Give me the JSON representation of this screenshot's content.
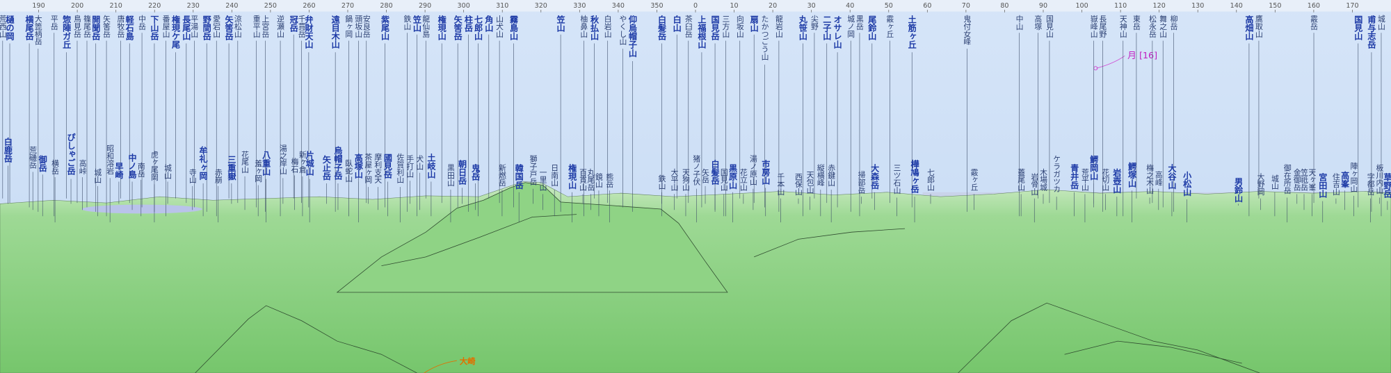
{
  "compass": {
    "ticks": [
      190,
      200,
      210,
      220,
      230,
      240,
      250,
      260,
      270,
      280,
      290,
      300,
      310,
      320,
      330,
      340,
      350,
      0,
      10,
      20,
      30,
      40,
      50,
      60,
      70,
      80,
      90,
      100,
      110,
      120,
      130,
      140,
      150,
      160,
      170
    ]
  },
  "top_labels": [
    {
      "name": "荒西山",
      "bold": false
    },
    {
      "name": "樋の岡",
      "bold": true
    },
    {
      "name": "横尾岳",
      "bold": true
    },
    {
      "name": "大箆柄岳",
      "bold": false
    },
    {
      "name": "平岳",
      "bold": false
    },
    {
      "name": "惣陣ガ丘",
      "bold": true
    },
    {
      "name": "鳥見岳",
      "bold": false
    },
    {
      "name": "篠尾岳",
      "bold": false
    },
    {
      "name": "開聞岳",
      "bold": true
    },
    {
      "name": "矢筈岳",
      "bold": false
    },
    {
      "name": "唐牧岳",
      "bold": false
    },
    {
      "name": "軽石島",
      "bold": true
    },
    {
      "name": "中岳",
      "bold": false
    },
    {
      "name": "下山岳",
      "bold": true
    },
    {
      "name": "番屋山",
      "bold": false
    },
    {
      "name": "権現ケ尾",
      "bold": true
    },
    {
      "name": "長尾山",
      "bold": true
    },
    {
      "name": "平湯山",
      "bold": false
    },
    {
      "name": "野間岳",
      "bold": true
    },
    {
      "name": "愛宕山",
      "bold": false
    },
    {
      "name": "矢筈岳",
      "bold": true
    },
    {
      "name": "涼松山",
      "bold": false
    },
    {
      "name": "重平山",
      "bold": false
    },
    {
      "name": "上宮岳",
      "bold": false
    },
    {
      "name": "逆瀬山",
      "bold": false
    },
    {
      "name": "冠岳",
      "bold": true
    },
    {
      "name": "千貫岳",
      "bold": false
    },
    {
      "name": "弁財天山",
      "bold": true
    },
    {
      "name": "遠目木山",
      "bold": true
    },
    {
      "name": "鍋ヶ岡",
      "bold": false
    },
    {
      "name": "頭坂山",
      "bold": false
    },
    {
      "name": "安良岳",
      "bold": false
    },
    {
      "name": "紫尾山",
      "bold": true
    },
    {
      "name": "鉄山",
      "bold": false
    },
    {
      "name": "笠山",
      "bold": true
    },
    {
      "name": "龍仙島",
      "bold": false
    },
    {
      "name": "権現山",
      "bold": true
    },
    {
      "name": "矢筈岳",
      "bold": true
    },
    {
      "name": "柱岳",
      "bold": true
    },
    {
      "name": "七郎山",
      "bold": true
    },
    {
      "name": "角山",
      "bold": true
    },
    {
      "name": "山犬山",
      "bold": false
    },
    {
      "name": "霧島山",
      "bold": true
    },
    {
      "name": "笠山",
      "bold": true
    },
    {
      "name": "柚鼻山",
      "bold": false
    },
    {
      "name": "秋払山",
      "bold": true
    },
    {
      "name": "白岩山",
      "bold": false
    },
    {
      "name": "やくし山",
      "bold": false
    },
    {
      "name": "仰烏帽子山",
      "bold": true
    },
    {
      "name": "白髪岳",
      "bold": true
    },
    {
      "name": "白山",
      "bold": true
    },
    {
      "name": "茶臼岳",
      "bold": false
    },
    {
      "name": "上福根山",
      "bold": true
    },
    {
      "name": "国見岳",
      "bold": true
    },
    {
      "name": "三方山",
      "bold": false
    },
    {
      "name": "向坂山",
      "bold": false
    },
    {
      "name": "扇山",
      "bold": true
    },
    {
      "name": "たかつごう山",
      "bold": false
    },
    {
      "name": "龍岩山",
      "bold": false
    },
    {
      "name": "丸笹山",
      "bold": true
    },
    {
      "name": "尖野",
      "bold": false
    },
    {
      "name": "二子山",
      "bold": true
    },
    {
      "name": "オサレ山",
      "bold": true
    },
    {
      "name": "城ノ岡",
      "bold": false
    },
    {
      "name": "黒岳",
      "bold": false
    },
    {
      "name": "尾鈴山",
      "bold": true
    },
    {
      "name": "霰ヶ丘",
      "bold": false
    },
    {
      "name": "土筋ヶ丘",
      "bold": true
    },
    {
      "name": "鬼付女峰",
      "bold": false
    },
    {
      "name": "中山",
      "bold": false
    },
    {
      "name": "高塚",
      "bold": false
    },
    {
      "name": "国見山",
      "bold": false
    },
    {
      "name": "嶽峰山",
      "bold": false
    },
    {
      "name": "長尾野",
      "bold": false
    },
    {
      "name": "天神山",
      "bold": false
    },
    {
      "name": "東岳",
      "bold": false
    },
    {
      "name": "松永岳",
      "bold": false
    },
    {
      "name": "舞之山",
      "bold": false
    },
    {
      "name": "柳岳",
      "bold": false
    },
    {
      "name": "高畑山",
      "bold": true
    },
    {
      "name": "鷹取山",
      "bold": false
    },
    {
      "name": "霰岳",
      "bold": false
    },
    {
      "name": "国見山",
      "bold": true
    },
    {
      "name": "甫与志岳",
      "bold": true
    },
    {
      "name": "城山",
      "bold": false
    }
  ],
  "lower_labels": [
    {
      "name": "白鹿岳",
      "bold": true
    },
    {
      "name": "荒磯岳",
      "bold": false
    },
    {
      "name": "御岳",
      "bold": true
    },
    {
      "name": "横岳",
      "bold": false
    },
    {
      "name": "ぴしゃご岳",
      "bold": true
    },
    {
      "name": "高峠",
      "bold": false
    },
    {
      "name": "城山",
      "bold": false
    },
    {
      "name": "昭和溶岩",
      "bold": false
    },
    {
      "name": "早崎",
      "bold": true
    },
    {
      "name": "中ノ島",
      "bold": true
    },
    {
      "name": "南岳",
      "bold": false
    },
    {
      "name": "虎ヶ尾岡",
      "bold": false
    },
    {
      "name": "城山",
      "bold": false
    },
    {
      "name": "寺山",
      "bold": false
    },
    {
      "name": "牟礼ヶ岡",
      "bold": true
    },
    {
      "name": "赤崩",
      "bold": false
    },
    {
      "name": "三重嶽",
      "bold": true
    },
    {
      "name": "花尾山",
      "bold": false
    },
    {
      "name": "羞ヶ岡",
      "bold": false
    },
    {
      "name": "八重山",
      "bold": true
    },
    {
      "name": "湯之岸山",
      "bold": false
    },
    {
      "name": "梅石",
      "bold": false
    },
    {
      "name": "新ヶ倉",
      "bold": false
    },
    {
      "name": "片城山",
      "bold": true
    },
    {
      "name": "矢止岳",
      "bold": true
    },
    {
      "name": "烏帽子岳",
      "bold": true
    },
    {
      "name": "臥蛇山",
      "bold": false
    },
    {
      "name": "高塚山",
      "bold": true
    },
    {
      "name": "茶屋ヶ岡",
      "bold": false
    },
    {
      "name": "摩利支天",
      "bold": false
    },
    {
      "name": "國見岳",
      "bold": true
    },
    {
      "name": "佐賀利山",
      "bold": false
    },
    {
      "name": "手打山",
      "bold": false
    },
    {
      "name": "犬山",
      "bold": false
    },
    {
      "name": "土岐山",
      "bold": true
    },
    {
      "name": "黒田山",
      "bold": false
    },
    {
      "name": "朝日岳",
      "bold": true
    },
    {
      "name": "鬼岳",
      "bold": true
    },
    {
      "name": "新燃岳",
      "bold": false
    },
    {
      "name": "韓国岳",
      "bold": true
    },
    {
      "name": "獅子戸岳",
      "bold": false
    },
    {
      "name": "一里山",
      "bold": false
    },
    {
      "name": "日南山",
      "bold": false
    },
    {
      "name": "権現山",
      "bold": true
    },
    {
      "name": "百貫山",
      "bold": false
    },
    {
      "name": "丸尾岳",
      "bold": false
    },
    {
      "name": "鏡山",
      "bold": false
    },
    {
      "name": "熊岳",
      "bold": false
    },
    {
      "name": "鉄山",
      "bold": false
    },
    {
      "name": "大平山",
      "bold": false
    },
    {
      "name": "天狗山",
      "bold": false
    },
    {
      "name": "猪ノ子伏",
      "bold": false
    },
    {
      "name": "矢岳",
      "bold": false
    },
    {
      "name": "白髪岳",
      "bold": true
    },
    {
      "name": "国見山",
      "bold": false
    },
    {
      "name": "黒原山",
      "bold": true
    },
    {
      "name": "花立山",
      "bold": false
    },
    {
      "name": "湯ノ原山",
      "bold": false
    },
    {
      "name": "市房山",
      "bold": true
    },
    {
      "name": "千本山",
      "bold": false
    },
    {
      "name": "西保山",
      "bold": false
    },
    {
      "name": "天包山",
      "bold": false
    },
    {
      "name": "縦横峰",
      "bold": false
    },
    {
      "name": "赤鍵山",
      "bold": false
    },
    {
      "name": "掃部岳",
      "bold": false
    },
    {
      "name": "大森岳",
      "bold": true
    },
    {
      "name": "三ツ石山",
      "bold": false
    },
    {
      "name": "樺鳩ヶ岳",
      "bold": true
    },
    {
      "name": "七郎山",
      "bold": false
    },
    {
      "name": "霰ヶ丘",
      "bold": false
    },
    {
      "name": "蓋尾山",
      "bold": false
    },
    {
      "name": "岩骨山",
      "bold": false
    },
    {
      "name": "木場城",
      "bold": false
    },
    {
      "name": "ケラガツカ",
      "bold": false
    },
    {
      "name": "青井岳",
      "bold": true
    },
    {
      "name": "荒平山",
      "bold": false
    },
    {
      "name": "鰐岡山",
      "bold": true
    },
    {
      "name": "花切山",
      "bold": false
    },
    {
      "name": "岩壺山",
      "bold": true
    },
    {
      "name": "鰐塚山",
      "bold": true
    },
    {
      "name": "梅之木山",
      "bold": false
    },
    {
      "name": "高峰",
      "bold": false
    },
    {
      "name": "大谷山",
      "bold": true
    },
    {
      "name": "小松山",
      "bold": true
    },
    {
      "name": "男鈴山",
      "bold": true
    },
    {
      "name": "大野岡",
      "bold": false
    },
    {
      "name": "城山",
      "bold": false
    },
    {
      "name": "御在所岳",
      "bold": false
    },
    {
      "name": "金御岳",
      "bold": false
    },
    {
      "name": "笠祇岳",
      "bold": false
    },
    {
      "name": "天ヶ峯",
      "bold": false
    },
    {
      "name": "宮田山",
      "bold": true
    },
    {
      "name": "住吉山",
      "bold": false
    },
    {
      "name": "高峯",
      "bold": true
    },
    {
      "name": "陣ヶ岡山",
      "bold": false
    },
    {
      "name": "字都岳",
      "bold": false
    },
    {
      "name": "板川内山",
      "bold": false
    },
    {
      "name": "草野岳",
      "bold": true
    }
  ],
  "annotations": {
    "moon": "月 [16]",
    "place": "大崎"
  }
}
